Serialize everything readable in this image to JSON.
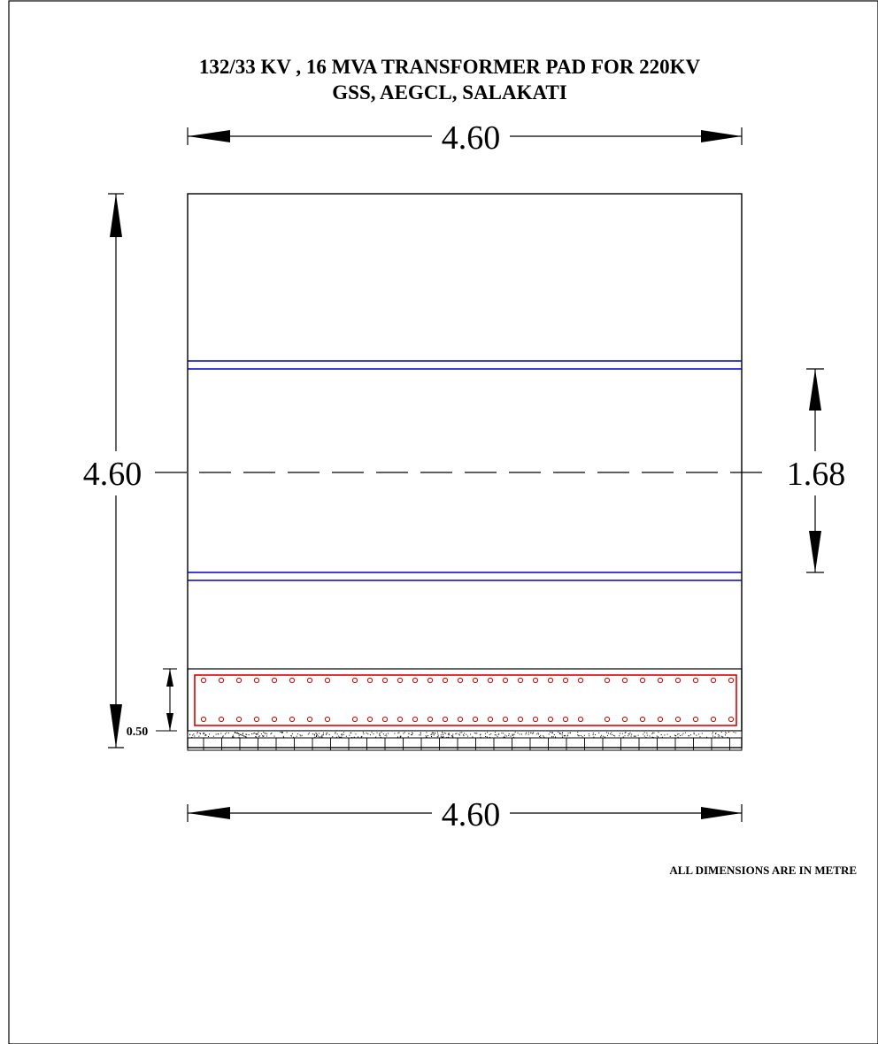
{
  "drawing": {
    "title_line1": "132/33 KV , 16 MVA TRANSFORMER PAD FOR 220KV",
    "title_line2": "GSS, AEGCL, SALAKATI",
    "plan": {
      "top_width_label": "4.60",
      "left_height_label": "4.60",
      "right_spacing_label": "1.68"
    },
    "section": {
      "depth_label": "0.50",
      "bottom_width_label": "4.60"
    },
    "note": "ALL DIMENSIONS ARE IN METRE",
    "colors": {
      "line": "#000000",
      "rail": "#0000cc",
      "rebar": "#e00000"
    }
  }
}
